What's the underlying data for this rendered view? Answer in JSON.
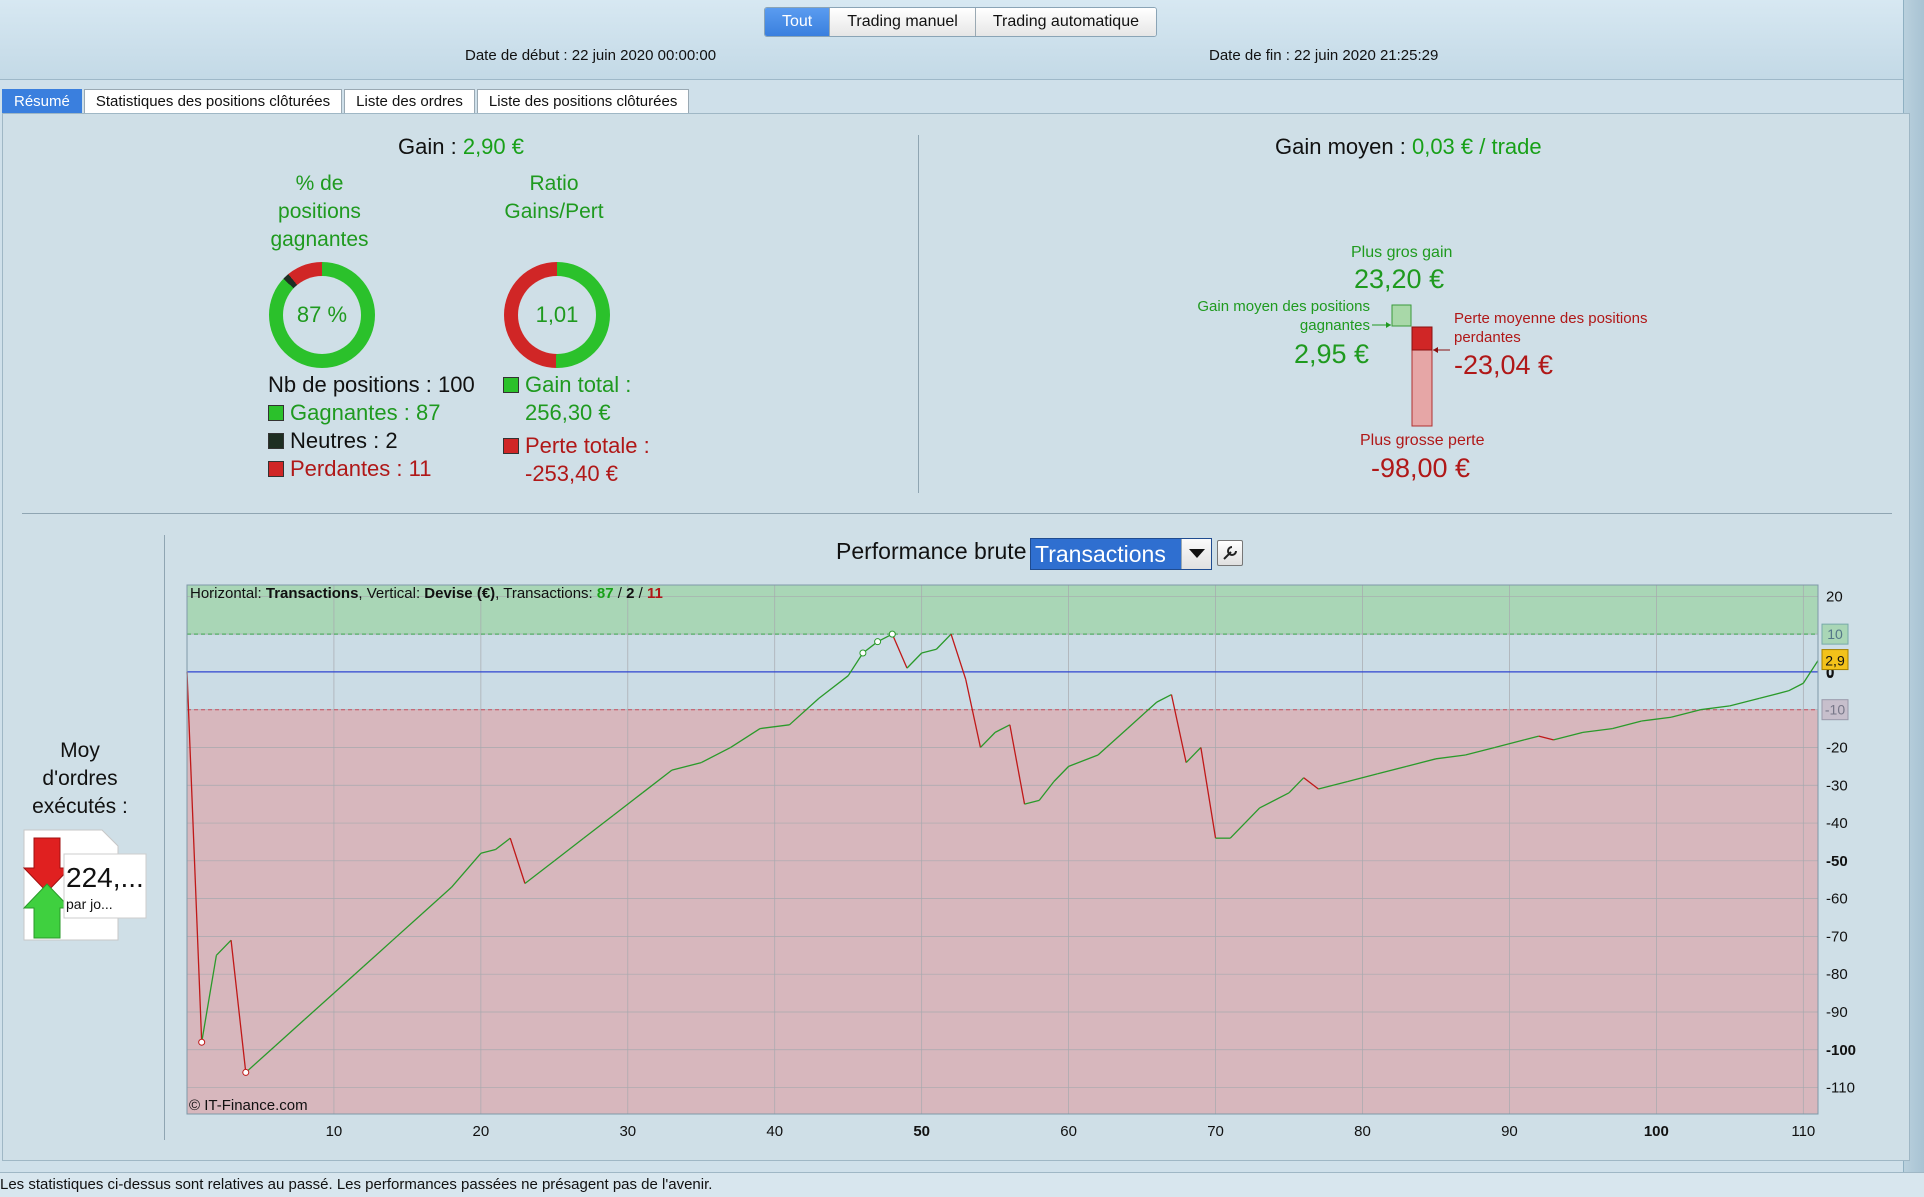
{
  "header": {
    "mode_tabs": [
      "Tout",
      "Trading manuel",
      "Trading automatique"
    ],
    "active_mode": 0,
    "start_date": "Date de début : 22 juin 2020 00:00:00",
    "end_date": "Date de fin : 22 juin 2020 21:25:29"
  },
  "tabs": [
    "Résumé",
    "Statistiques des positions clôturées",
    "Liste des ordres",
    "Liste des positions clôturées"
  ],
  "summary": {
    "gain_label": "Gain :",
    "gain_value": "2,90 €",
    "pct_label_lines": [
      "% de",
      "positions",
      "gagnantes"
    ],
    "pct_value": "87 %",
    "pct_fraction": 0.87,
    "neutral_fraction": 0.02,
    "ratio_label_lines": [
      "Ratio",
      "Gains/Pert"
    ],
    "ratio_value": "1,01",
    "ratio_gain_fraction": 0.503,
    "nb_positions": "Nb de positions : 100",
    "gagnantes": "Gagnantes : 87",
    "neutres": "Neutres : 2",
    "perdantes": "Perdantes : 11",
    "gain_total_label": "Gain total :",
    "gain_total_value": "256,30 €",
    "perte_totale_label": "Perte totale :",
    "perte_totale_value": "-253,40 €",
    "gain_moyen_label": "Gain moyen :",
    "gain_moyen_value": "0,03 € / trade",
    "plus_gros_gain_label": "Plus gros gain",
    "plus_gros_gain_value": "23,20 €",
    "gain_moyen_pos_label_lines": [
      "Gain moyen des positions",
      "gagnantes"
    ],
    "gain_moyen_pos_value": "2,95 €",
    "perte_moyenne_label_lines": [
      "Perte moyenne des positions",
      "perdantes"
    ],
    "perte_moyenne_value": "-23,04 €",
    "plus_grosse_perte_label": "Plus grosse perte",
    "plus_grosse_perte_value": "-98,00 €"
  },
  "orders": {
    "title_lines": [
      "Moy",
      "d'ordres",
      "exécutés :"
    ],
    "value": "224,...",
    "unit": "par jo..."
  },
  "chart_header": {
    "title": "Performance brute",
    "axis_select": "Transactions",
    "info_prefix": "Horizontal: ",
    "info_h": "Transactions",
    "info_mid": ", Vertical: ",
    "info_v": "Devise (€)",
    "info_tx": ", Transactions: ",
    "info_win": "87",
    "info_sep": " / ",
    "info_neu": "2",
    "info_loss": "11",
    "watermark": "© IT-Finance.com",
    "last_value_label": "2,9"
  },
  "chart_data": {
    "type": "line",
    "x_ticks": [
      10,
      20,
      30,
      40,
      50,
      60,
      70,
      80,
      90,
      100,
      110
    ],
    "x_bold_ticks": [
      50,
      100
    ],
    "y_ticks": [
      20,
      10,
      0,
      -10,
      -20,
      -30,
      -40,
      -50,
      -60,
      -70,
      -80,
      -90,
      -100,
      -110
    ],
    "y_bold_ticks": [
      0,
      -50,
      -100
    ],
    "xlim": [
      0,
      111
    ],
    "ylim": [
      -117,
      23
    ],
    "upper_band": 10,
    "lower_band": -10,
    "points": [
      [
        0,
        0
      ],
      [
        1,
        -98
      ],
      [
        2,
        -75
      ],
      [
        3,
        -71
      ],
      [
        4,
        -106
      ],
      [
        6,
        -99
      ],
      [
        8,
        -92
      ],
      [
        10,
        -85
      ],
      [
        12,
        -78
      ],
      [
        14,
        -71
      ],
      [
        16,
        -64
      ],
      [
        18,
        -57
      ],
      [
        20,
        -48
      ],
      [
        21,
        -47
      ],
      [
        22,
        -44
      ],
      [
        23,
        -56
      ],
      [
        25,
        -50
      ],
      [
        27,
        -44
      ],
      [
        29,
        -38
      ],
      [
        31,
        -32
      ],
      [
        33,
        -26
      ],
      [
        35,
        -24
      ],
      [
        37,
        -20
      ],
      [
        39,
        -15
      ],
      [
        41,
        -14
      ],
      [
        43,
        -7
      ],
      [
        45,
        -1
      ],
      [
        46,
        5
      ],
      [
        47,
        8
      ],
      [
        48,
        10
      ],
      [
        49,
        1
      ],
      [
        50,
        5
      ],
      [
        51,
        6
      ],
      [
        52,
        10
      ],
      [
        53,
        -2
      ],
      [
        54,
        -20
      ],
      [
        55,
        -16
      ],
      [
        56,
        -14
      ],
      [
        57,
        -35
      ],
      [
        58,
        -34
      ],
      [
        59,
        -29
      ],
      [
        60,
        -25
      ],
      [
        62,
        -22
      ],
      [
        64,
        -15
      ],
      [
        66,
        -8
      ],
      [
        67,
        -6
      ],
      [
        68,
        -24
      ],
      [
        69,
        -20
      ],
      [
        70,
        -44
      ],
      [
        71,
        -44
      ],
      [
        73,
        -36
      ],
      [
        75,
        -32
      ],
      [
        76,
        -28
      ],
      [
        77,
        -31
      ],
      [
        79,
        -29
      ],
      [
        81,
        -27
      ],
      [
        83,
        -25
      ],
      [
        85,
        -23
      ],
      [
        87,
        -22
      ],
      [
        89,
        -20
      ],
      [
        91,
        -18
      ],
      [
        92,
        -17
      ],
      [
        93,
        -18
      ],
      [
        95,
        -16
      ],
      [
        97,
        -15
      ],
      [
        99,
        -13
      ],
      [
        101,
        -12
      ],
      [
        103,
        -10
      ],
      [
        105,
        -9
      ],
      [
        107,
        -7
      ],
      [
        109,
        -5
      ],
      [
        110,
        -3
      ],
      [
        111,
        3
      ]
    ]
  },
  "colors": {
    "win": "#2bc12b",
    "loss": "#d02626",
    "neutral": "#1e2e22",
    "accent": "#3a7fde"
  },
  "footer": {
    "disclaimer": "Les statistiques ci-dessus sont relatives au passé. Les performances passées ne présagent pas de l'avenir."
  }
}
